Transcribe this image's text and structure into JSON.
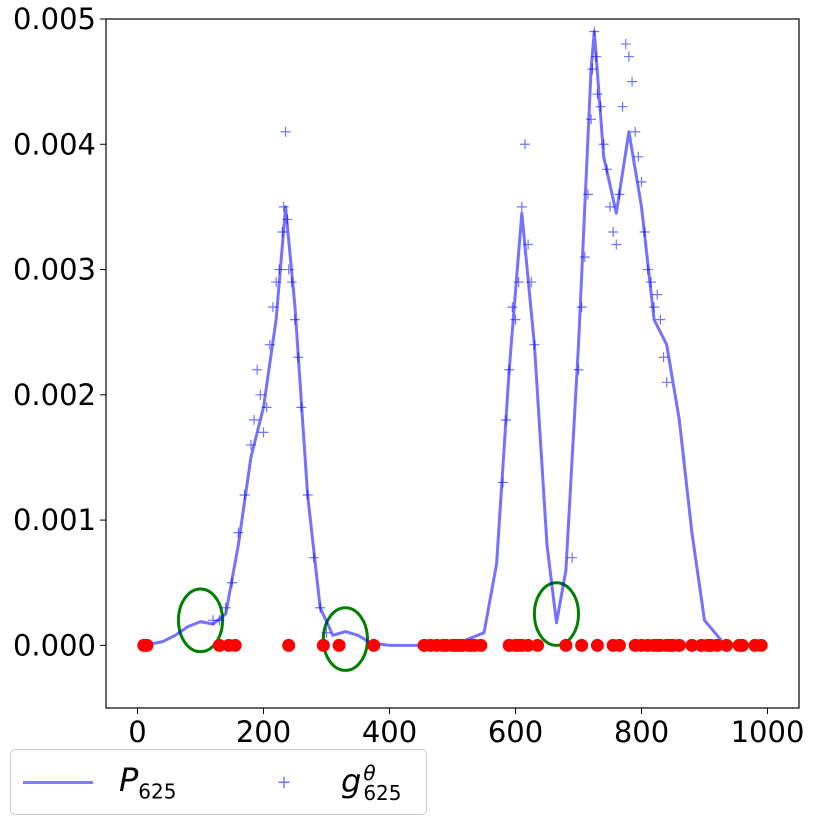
{
  "chart_data": {
    "type": "scatter",
    "title": "",
    "xlabel": "",
    "ylabel": "",
    "xlim": [
      -50,
      1050
    ],
    "ylim": [
      -0.0005,
      0.005
    ],
    "xticks": [
      0,
      200,
      400,
      600,
      800,
      1000
    ],
    "xtick_labels": [
      "0",
      "200",
      "400",
      "600",
      "800",
      "1000"
    ],
    "yticks": [
      0,
      0.001,
      0.002,
      0.003,
      0.004,
      0.005
    ],
    "ytick_labels": [
      "0.000",
      "0.001",
      "0.002",
      "0.003",
      "0.004",
      "0.005"
    ],
    "grid": false,
    "legend": "bottom-left, outside below axes, two columns",
    "series": [
      {
        "name": "P_625",
        "label_main": "P",
        "label_sub": "625",
        "kind": "line",
        "color": "#0000ff",
        "x": [
          5,
          20,
          40,
          60,
          80,
          100,
          120,
          140,
          160,
          180,
          200,
          220,
          235,
          250,
          270,
          290,
          310,
          330,
          350,
          370,
          400,
          450,
          500,
          550,
          570,
          590,
          610,
          630,
          650,
          665,
          680,
          700,
          720,
          725,
          740,
          760,
          780,
          800,
          820,
          840,
          860,
          880,
          900,
          930,
          960,
          995
        ],
        "y": [
          0,
          1e-05,
          3e-05,
          8e-05,
          0.00015,
          0.00019,
          0.00017,
          0.00025,
          0.0008,
          0.0015,
          0.0019,
          0.0026,
          0.0035,
          0.0027,
          0.0012,
          0.0003,
          8e-05,
          0.00011,
          8e-05,
          2e-05,
          0,
          0,
          0,
          0.0001,
          0.00065,
          0.0022,
          0.00345,
          0.0024,
          0.0008,
          0.00018,
          0.0006,
          0.0024,
          0.0046,
          0.0049,
          0.0039,
          0.00345,
          0.0041,
          0.0035,
          0.0026,
          0.0024,
          0.0018,
          0.0009,
          0.0002,
          2e-05,
          0,
          0
        ]
      },
      {
        "name": "g_625^theta",
        "label_main": "g",
        "label_sub": "625",
        "label_sup": "θ",
        "kind": "scatter",
        "marker": "+",
        "color": "#0000ff",
        "x": [
          120,
          130,
          140,
          150,
          160,
          170,
          180,
          185,
          190,
          195,
          200,
          205,
          210,
          215,
          220,
          225,
          230,
          232,
          235,
          238,
          240,
          245,
          250,
          255,
          260,
          270,
          280,
          290,
          300,
          580,
          585,
          590,
          595,
          600,
          605,
          610,
          615,
          620,
          625,
          630,
          690,
          700,
          705,
          710,
          715,
          720,
          722,
          725,
          728,
          730,
          735,
          740,
          745,
          750,
          755,
          760,
          765,
          770,
          775,
          780,
          785,
          790,
          795,
          800,
          805,
          810,
          815,
          820,
          825,
          830,
          835,
          840
        ],
        "y": [
          0.0002,
          0.0002,
          0.0003,
          0.0005,
          0.0009,
          0.0012,
          0.0016,
          0.0018,
          0.0022,
          0.002,
          0.0017,
          0.0019,
          0.0024,
          0.0027,
          0.0029,
          0.003,
          0.0033,
          0.0035,
          0.0041,
          0.0034,
          0.003,
          0.0029,
          0.0026,
          0.0023,
          0.0019,
          0.0012,
          0.0007,
          0.0003,
          0.0001,
          0.0013,
          0.0018,
          0.0022,
          0.0027,
          0.0026,
          0.0029,
          0.0035,
          0.004,
          0.0032,
          0.0029,
          0.0024,
          0.0007,
          0.0022,
          0.0027,
          0.0031,
          0.0036,
          0.0042,
          0.0046,
          0.0049,
          0.0047,
          0.0044,
          0.0043,
          0.004,
          0.0038,
          0.0035,
          0.0033,
          0.0032,
          0.0036,
          0.0043,
          0.0048,
          0.0047,
          0.0045,
          0.0041,
          0.0039,
          0.0037,
          0.0033,
          0.003,
          0.0029,
          0.0027,
          0.0028,
          0.0026,
          0.0023,
          0.0021
        ]
      },
      {
        "name": "",
        "kind": "scatter",
        "marker": "o",
        "color": "#ff0000",
        "x": [
          10,
          15,
          130,
          145,
          155,
          240,
          295,
          320,
          375,
          455,
          465,
          475,
          485,
          490,
          500,
          505,
          510,
          515,
          525,
          530,
          535,
          545,
          590,
          600,
          605,
          610,
          620,
          635,
          680,
          705,
          730,
          755,
          765,
          790,
          800,
          810,
          820,
          825,
          830,
          840,
          845,
          850,
          860,
          880,
          895,
          905,
          910,
          920,
          935,
          955,
          960,
          980,
          990
        ],
        "y": [
          0,
          0,
          0,
          0,
          0,
          0,
          0,
          0,
          0,
          0,
          0,
          0,
          0,
          0,
          0,
          0,
          0,
          0,
          0,
          0,
          0,
          0,
          0,
          0,
          0,
          0,
          0,
          0,
          0,
          0,
          0,
          0,
          0,
          0,
          0,
          0,
          0,
          0,
          0,
          0,
          0,
          0,
          0,
          0,
          0,
          0,
          0,
          0,
          0,
          0,
          0,
          0,
          0
        ]
      }
    ],
    "annotations": [
      {
        "shape": "ellipse",
        "color": "#008000",
        "cx": 100,
        "cy": 0.0002,
        "rx": 35,
        "ry": 0.00025
      },
      {
        "shape": "ellipse",
        "color": "#008000",
        "cx": 330,
        "cy": 5e-05,
        "rx": 35,
        "ry": 0.00025
      },
      {
        "shape": "ellipse",
        "color": "#008000",
        "cx": 665,
        "cy": 0.00025,
        "rx": 35,
        "ry": 0.00025
      }
    ]
  }
}
